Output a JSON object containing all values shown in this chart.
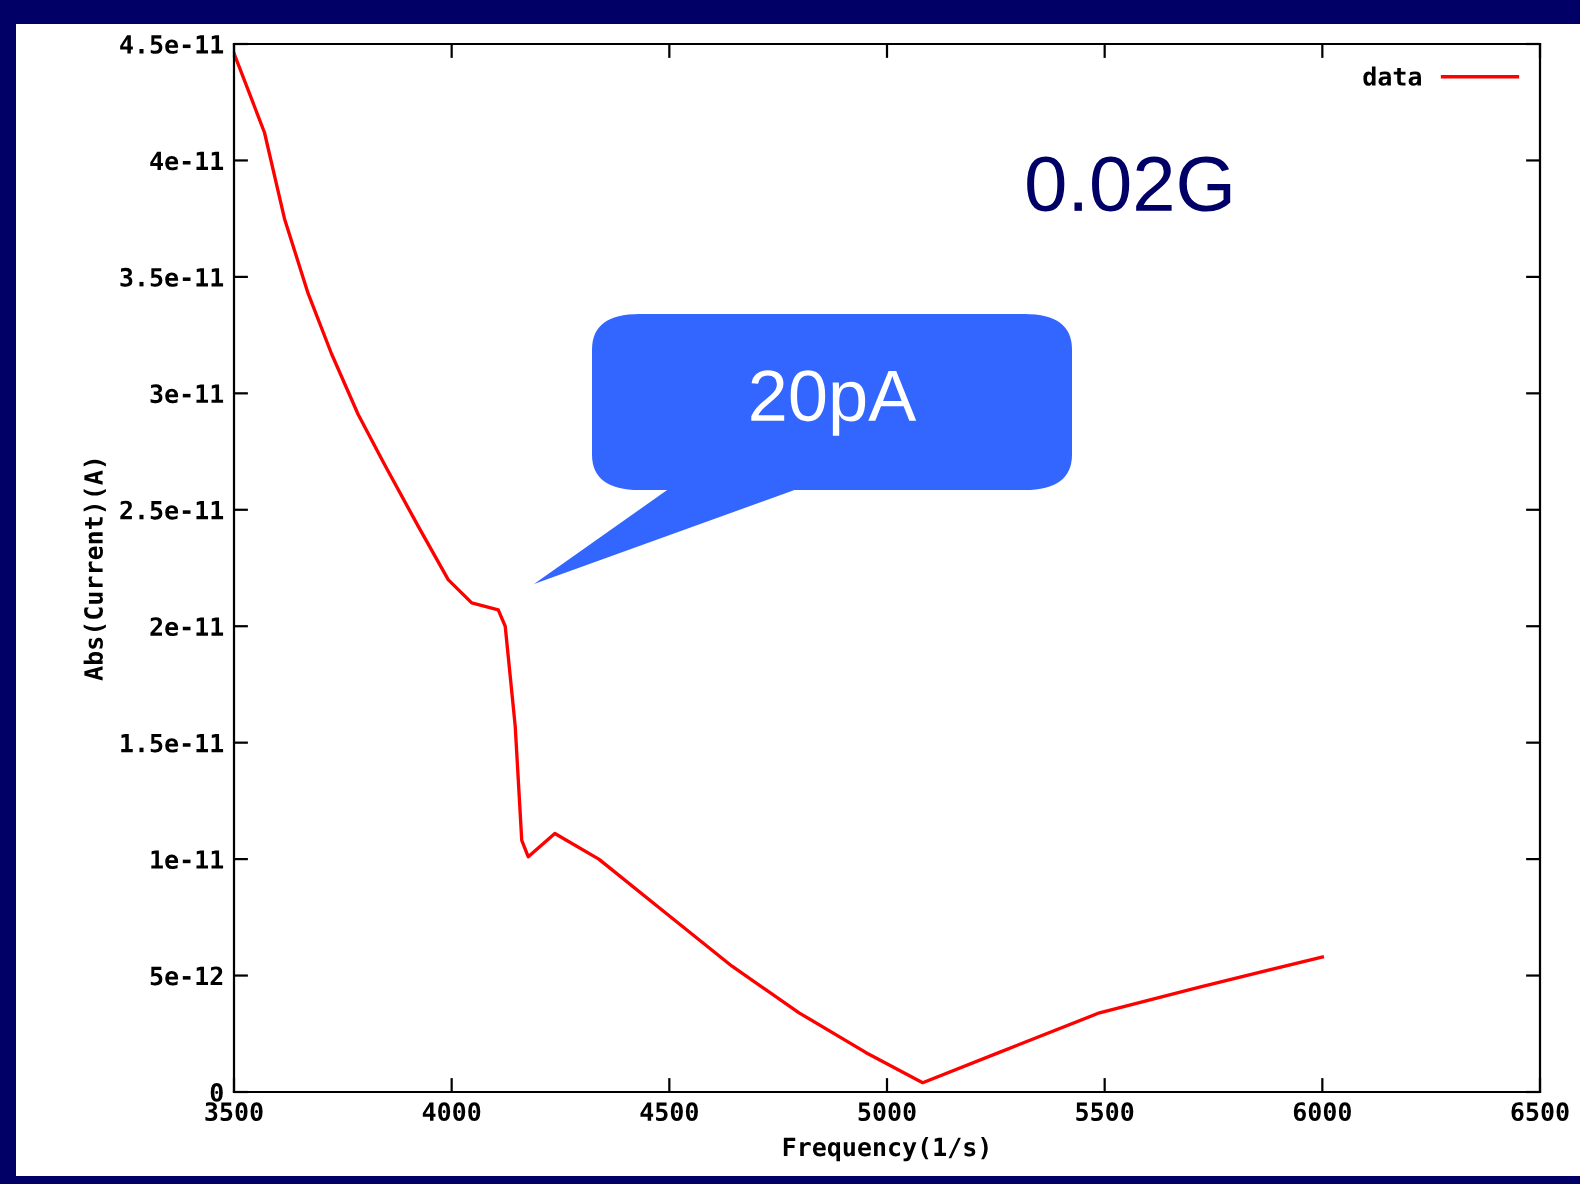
{
  "chart_data": {
    "type": "line",
    "xlabel": "Frequency(1/s)",
    "ylabel": "Abs(Current)(A)",
    "x": [
      3500,
      3570,
      3616,
      3670,
      3724,
      3785,
      3847,
      3923,
      3992,
      4046,
      4107,
      4123,
      4146,
      4161,
      4176,
      4237,
      4338,
      4491,
      4644,
      4798,
      4951,
      5082,
      5258,
      5488,
      5718,
      6000
    ],
    "series": [
      {
        "name": "data",
        "color": "#ff0000",
        "values": [
          4.46e-11,
          4.12e-11,
          3.75e-11,
          3.43e-11,
          3.17e-11,
          2.91e-11,
          2.69e-11,
          2.43e-11,
          2.2e-11,
          2.1e-11,
          2.07e-11,
          2e-11,
          1.57e-11,
          1.08e-11,
          1.01e-11,
          1.11e-11,
          1e-11,
          7.7e-12,
          5.4e-12,
          3.4e-12,
          1.7e-12,
          4e-13,
          1.7e-12,
          3.4e-12,
          4.5e-12,
          5.8e-12
        ]
      }
    ],
    "xlim": [
      3500,
      6500
    ],
    "xticks": [
      3500,
      4000,
      4500,
      5000,
      5500,
      6000,
      6500
    ],
    "ylim": [
      0,
      4.5e-11
    ],
    "yticks": [
      0,
      {
        "value": 5e-12,
        "label": "5e-12"
      },
      {
        "value": 1e-11,
        "label": "1e-11"
      },
      {
        "value": 1.5e-11,
        "label": "1.5e-11"
      },
      {
        "value": 2e-11,
        "label": "2e-11"
      },
      {
        "value": 2.5e-11,
        "label": "2.5e-11"
      },
      {
        "value": 3e-11,
        "label": "3e-11"
      },
      {
        "value": 3.5e-11,
        "label": "3.5e-11"
      },
      {
        "value": 4e-11,
        "label": "4e-11"
      },
      {
        "value": 4.5e-11,
        "label": "4.5e-11"
      }
    ],
    "annotations": [
      "0.02G",
      "20pA"
    ],
    "legend": "top right",
    "grid": false,
    "marker": "none",
    "line_style": "solid"
  }
}
